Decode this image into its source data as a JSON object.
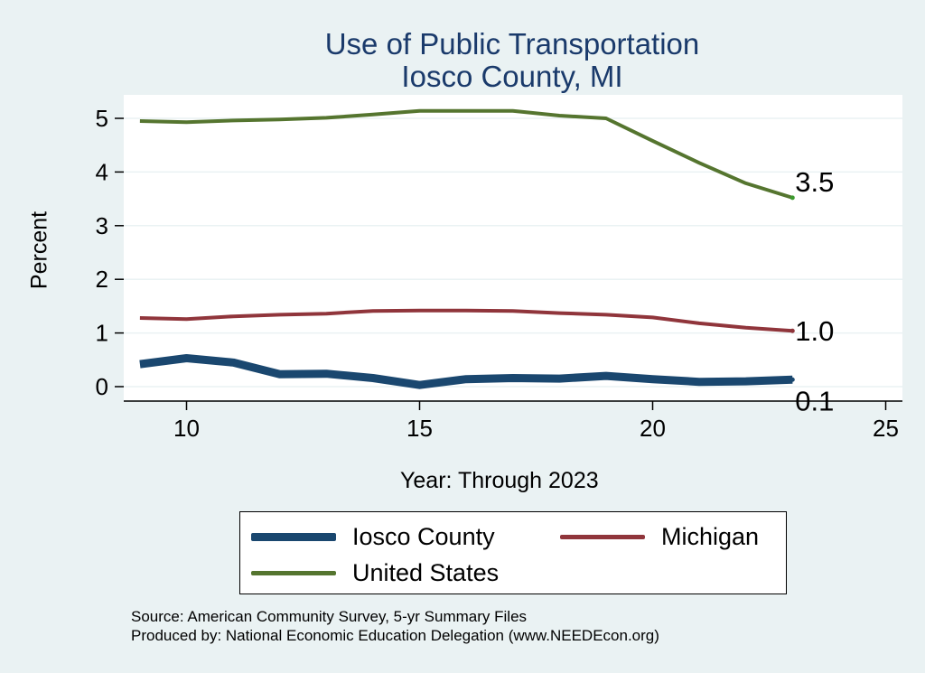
{
  "chart_data": {
    "type": "line",
    "title": "Use of Public Transportation",
    "subtitle": "Iosco County, MI",
    "xlabel": "Year: Through 2023",
    "ylabel": "Percent",
    "xlim": [
      9,
      25
    ],
    "ylim": [
      0,
      5
    ],
    "x_ticks": [
      10,
      15,
      20,
      25
    ],
    "y_ticks": [
      0,
      1,
      2,
      3,
      4,
      5
    ],
    "grid": true,
    "legend_position": "bottom",
    "x": [
      9,
      10,
      11,
      12,
      13,
      14,
      15,
      16,
      17,
      18,
      19,
      20,
      21,
      22,
      23
    ],
    "series": [
      {
        "name": "Iosco County",
        "color": "#1a476f",
        "values": [
          0.42,
          0.53,
          0.45,
          0.23,
          0.24,
          0.16,
          0.03,
          0.14,
          0.16,
          0.15,
          0.2,
          0.14,
          0.09,
          0.1,
          0.13
        ],
        "end_label": "0.1"
      },
      {
        "name": "Michigan",
        "color": "#90353b",
        "values": [
          1.28,
          1.26,
          1.31,
          1.34,
          1.36,
          1.41,
          1.42,
          1.42,
          1.41,
          1.37,
          1.34,
          1.29,
          1.18,
          1.1,
          1.04
        ],
        "end_label": "1.0"
      },
      {
        "name": "United States",
        "color": "#55752f",
        "values": [
          4.95,
          4.93,
          4.96,
          4.98,
          5.01,
          5.07,
          5.14,
          5.14,
          5.14,
          5.05,
          5.0,
          4.58,
          4.17,
          3.79,
          3.52
        ],
        "end_label": "3.5"
      }
    ]
  },
  "source_lines": [
    "Source: American Community Survey, 5-yr Summary Files",
    "Produced by: National Economic Education Delegation (www.NEEDEcon.org)"
  ]
}
